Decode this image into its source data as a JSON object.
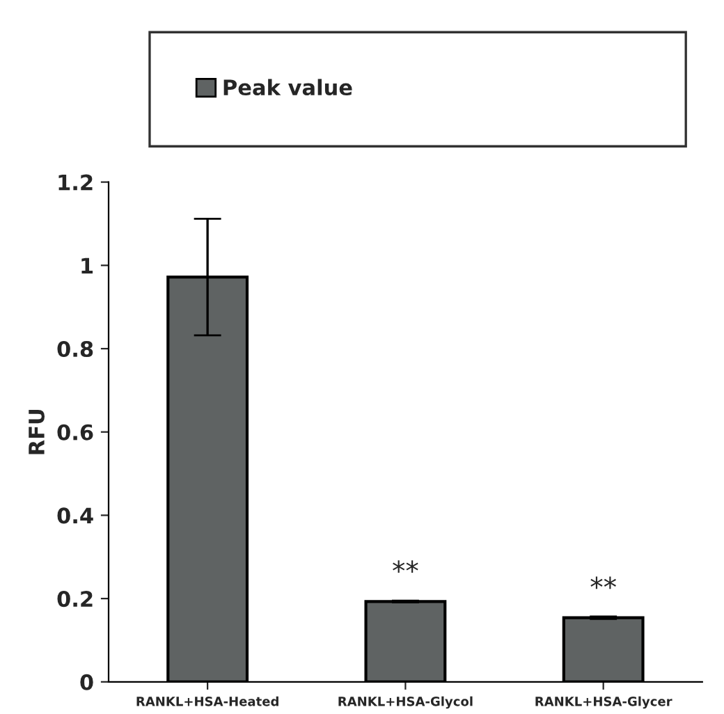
{
  "chart_data": {
    "type": "bar",
    "ylabel": "RFU",
    "categories": [
      "RANKL+HSA-Heated",
      "RANKL+HSA-Glycol",
      "RANKL+HSA-Glycer"
    ],
    "series": [
      {
        "name": "Peak value",
        "color": "#5f6363",
        "values": [
          0.972,
          0.193,
          0.154
        ],
        "errors": [
          0.14,
          0.002,
          0.003
        ]
      }
    ],
    "ylim": [
      0,
      1.2
    ],
    "yticks": [
      {
        "value": 0,
        "label": "0"
      },
      0.2,
      0.4,
      0.6,
      0.8,
      {
        "value": 1,
        "label": "1"
      },
      1.2
    ],
    "annotations": [
      {
        "text": "**",
        "x": "RANKL+HSA-Glycol",
        "y": 0.193
      },
      {
        "text": "**",
        "x": "RANKL+HSA-Glycer",
        "y": 0.154
      }
    ],
    "grid": false,
    "legend": "top"
  }
}
